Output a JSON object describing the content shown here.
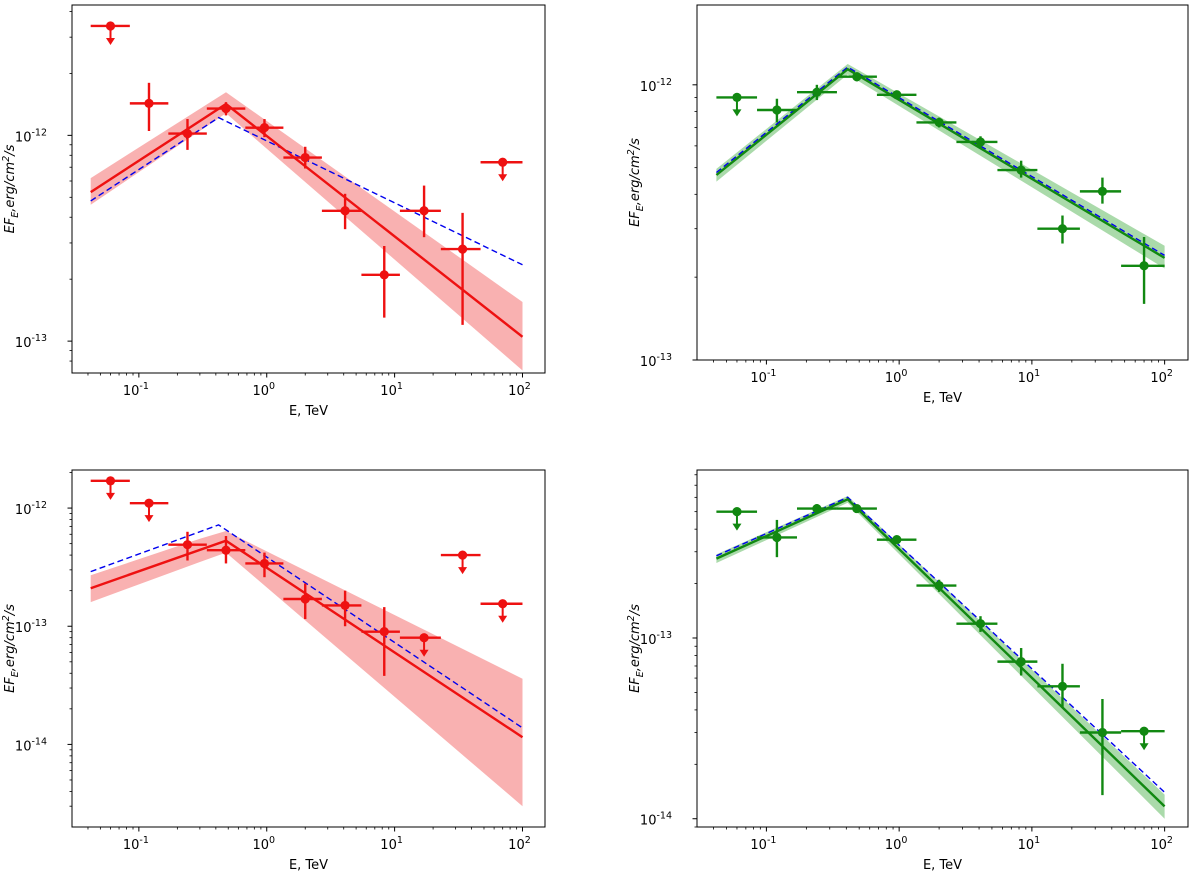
{
  "chart_data": [
    {
      "type": "scatter",
      "panel": "top-left",
      "xlabel": "E, TeV",
      "ylabel": "EF_E, erg/cm^2/s",
      "xscale": "log",
      "yscale": "log",
      "xlim": [
        0.03,
        150
      ],
      "ylim": [
        7e-14,
        4.3e-12
      ],
      "xticks": [
        {
          "value": 0.1,
          "exp": "-1"
        },
        {
          "value": 1,
          "exp": "0"
        },
        {
          "value": 10,
          "exp": "1"
        },
        {
          "value": 100,
          "exp": "2"
        }
      ],
      "yticks": [
        {
          "value": 1e-13,
          "exp": "-13"
        },
        {
          "value": 1e-12,
          "exp": "-12"
        }
      ],
      "colors": {
        "data": "#ee1111",
        "band": "#f8a3a3",
        "dashed": "#0000ee"
      },
      "points": [
        {
          "x": 0.06,
          "xlo": 0.042,
          "xhi": 0.085,
          "y": 3.4e-12,
          "ul": true
        },
        {
          "x": 0.12,
          "xlo": 0.085,
          "xhi": 0.17,
          "y": 1.43e-12,
          "ylo": 1.05e-12,
          "yhi": 1.8e-12
        },
        {
          "x": 0.24,
          "xlo": 0.17,
          "xhi": 0.34,
          "y": 1.02e-12,
          "ylo": 8.5e-13,
          "yhi": 1.2e-12
        },
        {
          "x": 0.48,
          "xlo": 0.34,
          "xhi": 0.68,
          "y": 1.35e-12,
          "ylo": 1.25e-12,
          "yhi": 1.45e-12
        },
        {
          "x": 0.96,
          "xlo": 0.68,
          "xhi": 1.35,
          "y": 1.09e-12,
          "ylo": 9.8e-13,
          "yhi": 1.2e-12
        },
        {
          "x": 2.0,
          "xlo": 1.35,
          "xhi": 2.7,
          "y": 7.8e-13,
          "ylo": 6.9e-13,
          "yhi": 8.8e-13
        },
        {
          "x": 4.1,
          "xlo": 2.7,
          "xhi": 5.5,
          "y": 4.3e-13,
          "ylo": 3.5e-13,
          "yhi": 5.2e-13
        },
        {
          "x": 8.3,
          "xlo": 5.5,
          "xhi": 11,
          "y": 2.1e-13,
          "ylo": 1.3e-13,
          "yhi": 2.9e-13
        },
        {
          "x": 17,
          "xlo": 11,
          "xhi": 23,
          "y": 4.3e-13,
          "ylo": 3.2e-13,
          "yhi": 5.7e-13
        },
        {
          "x": 34,
          "xlo": 23,
          "xhi": 47,
          "y": 2.8e-13,
          "ylo": 1.2e-13,
          "yhi": 4.2e-13
        },
        {
          "x": 70,
          "xlo": 47,
          "xhi": 100,
          "y": 7.4e-13,
          "ul": true
        }
      ],
      "model": {
        "x": [
          0.042,
          0.48,
          100
        ],
        "y": [
          5.3e-13,
          1.42e-12,
          1.05e-13
        ]
      },
      "band": {
        "x": [
          0.042,
          0.48,
          100
        ],
        "lo": [
          4.6e-13,
          1.28e-12,
          7.2e-14
        ],
        "hi": [
          6.2e-13,
          1.62e-12,
          1.55e-13
        ]
      },
      "dashed": {
        "x": [
          0.042,
          0.42,
          100
        ],
        "y": [
          4.8e-13,
          1.22e-12,
          2.35e-13
        ]
      }
    },
    {
      "type": "scatter",
      "panel": "top-right",
      "xlabel": "E, TeV",
      "ylabel": "EF_E, erg/cm^2/s",
      "xscale": "log",
      "yscale": "log",
      "xlim": [
        0.03,
        150
      ],
      "ylim": [
        1e-13,
        1.95e-12
      ],
      "xticks": [
        {
          "value": 0.1,
          "exp": "-1"
        },
        {
          "value": 1,
          "exp": "0"
        },
        {
          "value": 10,
          "exp": "1"
        },
        {
          "value": 100,
          "exp": "2"
        }
      ],
      "yticks": [
        {
          "value": 1e-13,
          "exp": "-13"
        },
        {
          "value": 1e-12,
          "exp": "-12"
        }
      ],
      "colors": {
        "data": "#118811",
        "band": "#9bd39b",
        "dashed": "#0000ee"
      },
      "points": [
        {
          "x": 0.06,
          "xlo": 0.042,
          "xhi": 0.085,
          "y": 9e-13,
          "ul": true
        },
        {
          "x": 0.12,
          "xlo": 0.085,
          "xhi": 0.17,
          "y": 8.1e-13,
          "ylo": 7.3e-13,
          "yhi": 8.9e-13
        },
        {
          "x": 0.24,
          "xlo": 0.17,
          "xhi": 0.34,
          "y": 9.4e-13,
          "ylo": 8.8e-13,
          "yhi": 1e-12
        },
        {
          "x": 0.48,
          "xlo": 0.34,
          "xhi": 0.68,
          "y": 1.07e-12,
          "ylo": 1.03e-12,
          "yhi": 1.11e-12
        },
        {
          "x": 0.96,
          "xlo": 0.68,
          "xhi": 1.35,
          "y": 9.2e-13,
          "ylo": 8.9e-13,
          "yhi": 9.5e-13
        },
        {
          "x": 2.0,
          "xlo": 1.35,
          "xhi": 2.7,
          "y": 7.3e-13,
          "ylo": 7e-13,
          "yhi": 7.6e-13
        },
        {
          "x": 4.1,
          "xlo": 2.7,
          "xhi": 5.5,
          "y": 6.2e-13,
          "ylo": 5.9e-13,
          "yhi": 6.5e-13
        },
        {
          "x": 8.3,
          "xlo": 5.5,
          "xhi": 11,
          "y": 4.9e-13,
          "ylo": 4.6e-13,
          "yhi": 5.3e-13
        },
        {
          "x": 17,
          "xlo": 11,
          "xhi": 23,
          "y": 3e-13,
          "ylo": 2.65e-13,
          "yhi": 3.35e-13
        },
        {
          "x": 34,
          "xlo": 23,
          "xhi": 47,
          "y": 4.1e-13,
          "ylo": 3.7e-13,
          "yhi": 4.6e-13
        },
        {
          "x": 70,
          "xlo": 47,
          "xhi": 100,
          "y": 2.2e-13,
          "ylo": 1.6e-13,
          "yhi": 2.8e-13
        }
      ],
      "model": {
        "x": [
          0.042,
          0.41,
          100
        ],
        "y": [
          4.7e-13,
          1.14e-12,
          2.35e-13
        ]
      },
      "band": {
        "x": [
          0.042,
          0.41,
          100
        ],
        "lo": [
          4.45e-13,
          1.09e-12,
          2.15e-13
        ],
        "hi": [
          4.95e-13,
          1.19e-12,
          2.6e-13
        ]
      },
      "dashed": {
        "x": [
          0.042,
          0.41,
          100
        ],
        "y": [
          4.8e-13,
          1.16e-12,
          2.4e-13
        ]
      }
    },
    {
      "type": "scatter",
      "panel": "bottom-left",
      "xlabel": "E, TeV",
      "ylabel": "EF_E, erg/cm^2/s",
      "xscale": "log",
      "yscale": "log",
      "xlim": [
        0.03,
        150
      ],
      "ylim": [
        2e-15,
        2.1e-12
      ],
      "xticks": [
        {
          "value": 0.1,
          "exp": "-1"
        },
        {
          "value": 1,
          "exp": "0"
        },
        {
          "value": 10,
          "exp": "1"
        },
        {
          "value": 100,
          "exp": "2"
        }
      ],
      "yticks": [
        {
          "value": 1e-14,
          "exp": "-14"
        },
        {
          "value": 1e-13,
          "exp": "-13"
        },
        {
          "value": 1e-12,
          "exp": "-12"
        }
      ],
      "colors": {
        "data": "#ee1111",
        "band": "#f8a3a3",
        "dashed": "#0000ee"
      },
      "points": [
        {
          "x": 0.06,
          "xlo": 0.042,
          "xhi": 0.085,
          "y": 1.7e-12,
          "ul": true
        },
        {
          "x": 0.12,
          "xlo": 0.085,
          "xhi": 0.17,
          "y": 1.1e-12,
          "ul": true
        },
        {
          "x": 0.24,
          "xlo": 0.17,
          "xhi": 0.34,
          "y": 4.9e-13,
          "ylo": 3.6e-13,
          "yhi": 6.3e-13
        },
        {
          "x": 0.48,
          "xlo": 0.34,
          "xhi": 0.68,
          "y": 4.4e-13,
          "ylo": 3.4e-13,
          "yhi": 5.8e-13
        },
        {
          "x": 0.96,
          "xlo": 0.68,
          "xhi": 1.35,
          "y": 3.4e-13,
          "ylo": 2.6e-13,
          "yhi": 4.2e-13
        },
        {
          "x": 2.0,
          "xlo": 1.35,
          "xhi": 2.7,
          "y": 1.7e-13,
          "ylo": 1.15e-13,
          "yhi": 2.3e-13
        },
        {
          "x": 4.1,
          "xlo": 2.7,
          "xhi": 5.5,
          "y": 1.5e-13,
          "ylo": 1e-13,
          "yhi": 2e-13
        },
        {
          "x": 8.3,
          "xlo": 5.5,
          "xhi": 11,
          "y": 9e-14,
          "ylo": 3.8e-14,
          "yhi": 1.45e-13
        },
        {
          "x": 17,
          "xlo": 11,
          "xhi": 23,
          "y": 8e-14,
          "ul": true
        },
        {
          "x": 34,
          "xlo": 23,
          "xhi": 47,
          "y": 4e-13,
          "ul": true
        },
        {
          "x": 70,
          "xlo": 47,
          "xhi": 100,
          "y": 1.55e-13,
          "ul": true
        }
      ],
      "model": {
        "x": [
          0.042,
          0.48,
          100
        ],
        "y": [
          2.1e-13,
          5.3e-13,
          1.15e-14
        ]
      },
      "band": {
        "x": [
          0.042,
          0.3,
          0.48,
          100
        ],
        "lo": [
          1.6e-13,
          3.5e-13,
          4.2e-13,
          3e-15
        ],
        "hi": [
          2.7e-13,
          5.5e-13,
          6.4e-13,
          3.6e-14
        ]
      },
      "dashed": {
        "x": [
          0.042,
          0.42,
          100
        ],
        "y": [
          2.9e-13,
          7.2e-13,
          1.38e-14
        ]
      }
    },
    {
      "type": "scatter",
      "panel": "bottom-right",
      "xlabel": "E, TeV",
      "ylabel": "EF_E, erg/cm^2/s",
      "xscale": "log",
      "yscale": "log",
      "xlim": [
        0.03,
        150
      ],
      "ylim": [
        9e-15,
        8.5e-13
      ],
      "xticks": [
        {
          "value": 0.1,
          "exp": "-1"
        },
        {
          "value": 1,
          "exp": "0"
        },
        {
          "value": 10,
          "exp": "1"
        },
        {
          "value": 100,
          "exp": "2"
        }
      ],
      "yticks": [
        {
          "value": 1e-14,
          "exp": "-14"
        },
        {
          "value": 1e-13,
          "exp": "-13"
        }
      ],
      "colors": {
        "data": "#118811",
        "band": "#9bd39b",
        "dashed": "#0000ee"
      },
      "points": [
        {
          "x": 0.06,
          "xlo": 0.042,
          "xhi": 0.085,
          "y": 5e-13,
          "ul": true
        },
        {
          "x": 0.12,
          "xlo": 0.085,
          "xhi": 0.17,
          "y": 3.6e-13,
          "ylo": 2.8e-13,
          "yhi": 4.5e-13
        },
        {
          "x": 0.24,
          "xlo": 0.17,
          "xhi": 0.34,
          "y": 5.2e-13,
          "ylo": 4.9e-13,
          "yhi": 5.5e-13
        },
        {
          "x": 0.48,
          "xlo": 0.34,
          "xhi": 0.68,
          "y": 5.2e-13,
          "ylo": 5e-13,
          "yhi": 5.4e-13
        },
        {
          "x": 0.96,
          "xlo": 0.68,
          "xhi": 1.35,
          "y": 3.5e-13,
          "ylo": 3.35e-13,
          "yhi": 3.65e-13
        },
        {
          "x": 2.0,
          "xlo": 1.35,
          "xhi": 2.7,
          "y": 1.95e-13,
          "ylo": 1.8e-13,
          "yhi": 2.1e-13
        },
        {
          "x": 4.1,
          "xlo": 2.7,
          "xhi": 5.5,
          "y": 1.2e-13,
          "ylo": 1.08e-13,
          "yhi": 1.32e-13
        },
        {
          "x": 8.3,
          "xlo": 5.5,
          "xhi": 11,
          "y": 7.4e-14,
          "ylo": 6.2e-14,
          "yhi": 8.8e-14
        },
        {
          "x": 17,
          "xlo": 11,
          "xhi": 23,
          "y": 5.4e-14,
          "ylo": 4.1e-14,
          "yhi": 7.2e-14
        },
        {
          "x": 34,
          "xlo": 23,
          "xhi": 47,
          "y": 3e-14,
          "ylo": 1.35e-14,
          "yhi": 4.6e-14
        },
        {
          "x": 70,
          "xlo": 47,
          "xhi": 100,
          "y": 3.05e-14,
          "ul": true
        }
      ],
      "model": {
        "x": [
          0.042,
          0.41,
          100
        ],
        "y": [
          2.75e-13,
          5.85e-13,
          1.17e-14
        ]
      },
      "band": {
        "x": [
          0.042,
          0.41,
          100
        ],
        "lo": [
          2.6e-13,
          5.6e-13,
          1e-14
        ],
        "hi": [
          2.9e-13,
          6.1e-13,
          1.36e-14
        ]
      },
      "dashed": {
        "x": [
          0.042,
          0.41,
          100
        ],
        "y": [
          2.85e-13,
          6e-13,
          1.4e-14
        ]
      }
    }
  ]
}
